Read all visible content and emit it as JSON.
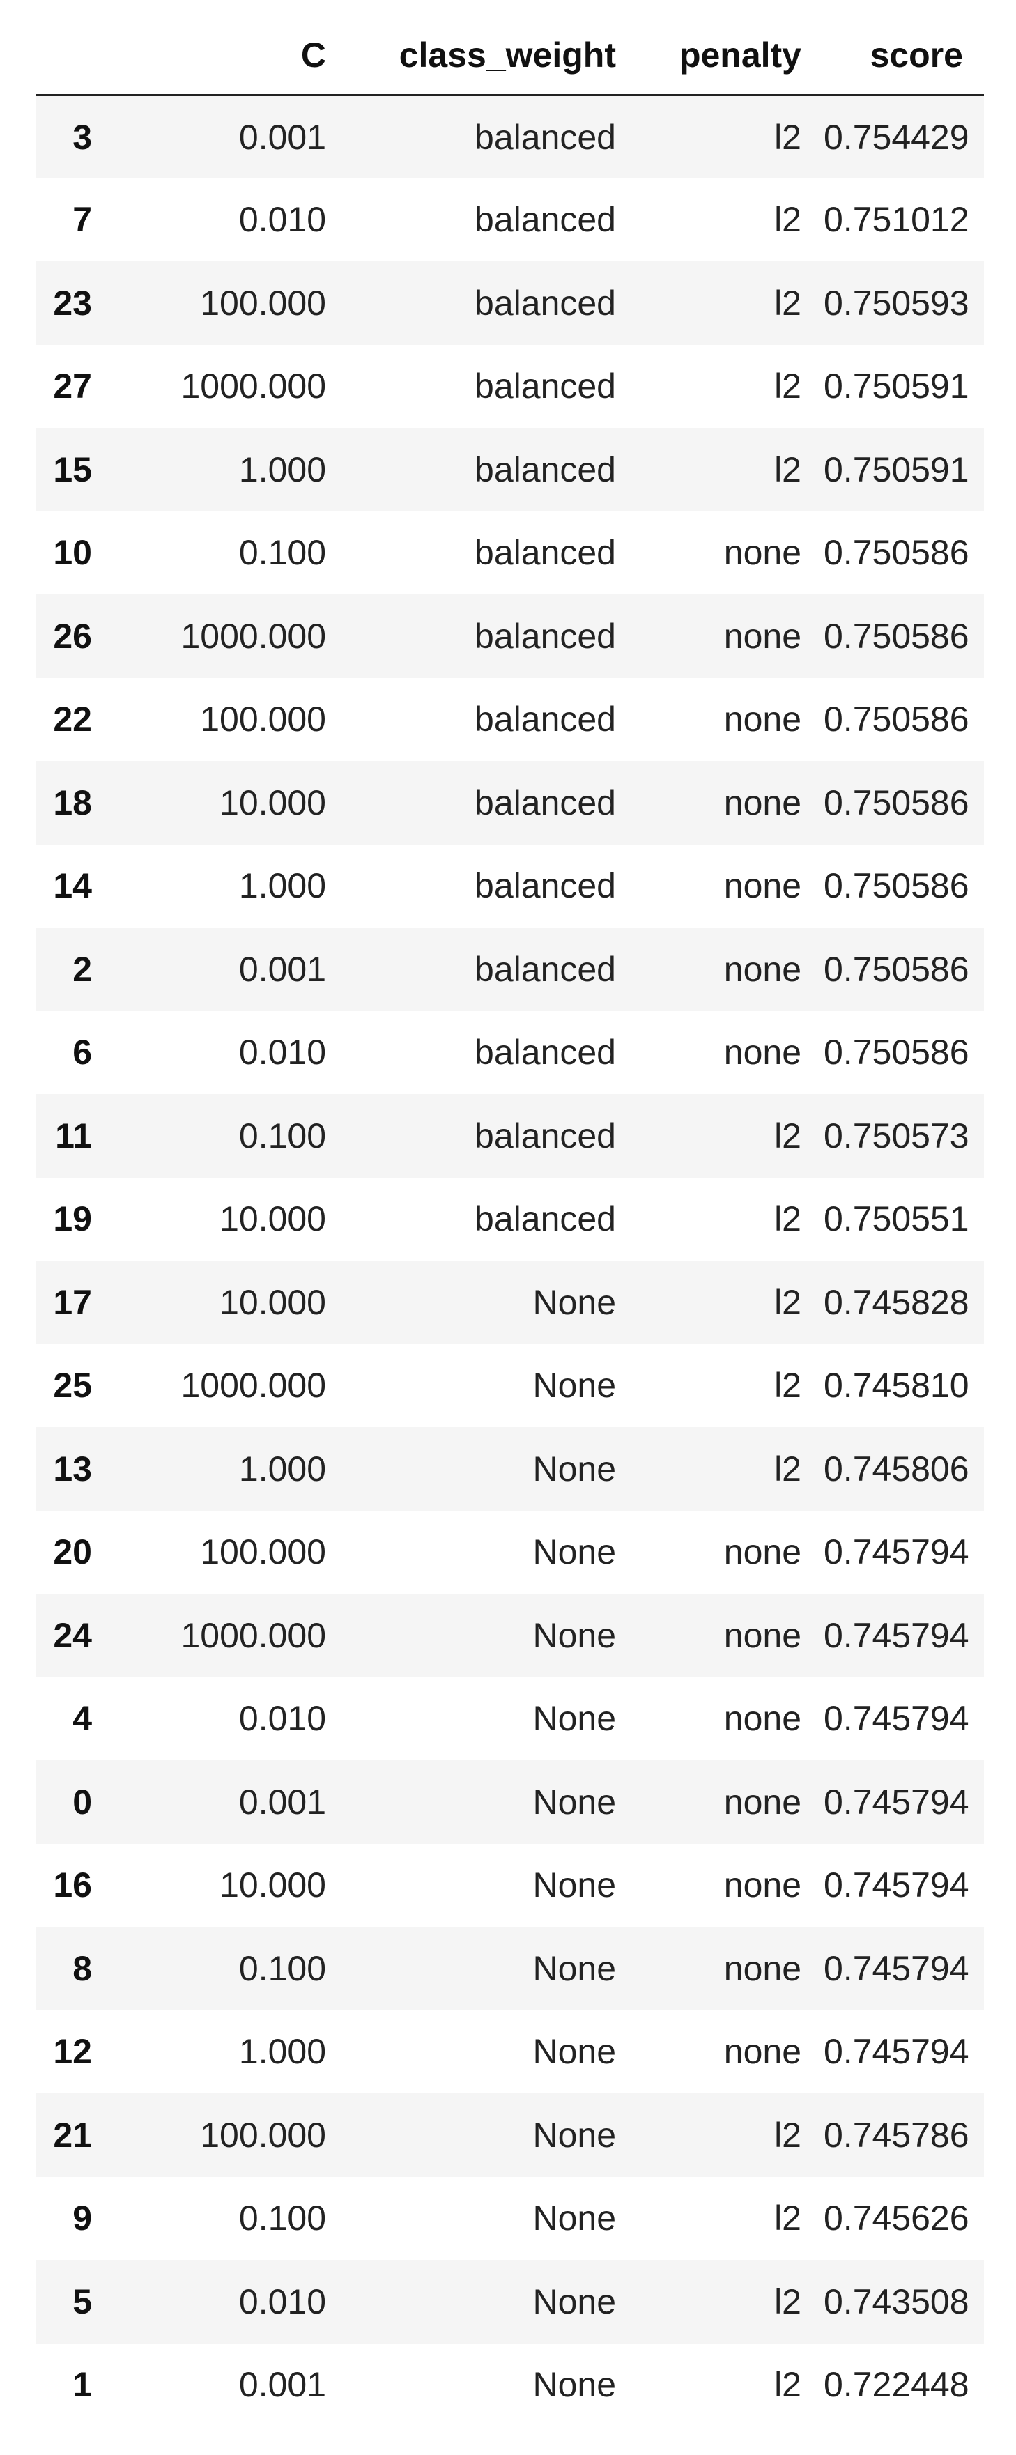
{
  "table": {
    "columns": [
      "",
      "C",
      "class_weight",
      "penalty",
      "score"
    ],
    "rows": [
      {
        "index": "3",
        "C": "0.001",
        "class_weight": "balanced",
        "penalty": "l2",
        "score": "0.754429"
      },
      {
        "index": "7",
        "C": "0.010",
        "class_weight": "balanced",
        "penalty": "l2",
        "score": "0.751012"
      },
      {
        "index": "23",
        "C": "100.000",
        "class_weight": "balanced",
        "penalty": "l2",
        "score": "0.750593"
      },
      {
        "index": "27",
        "C": "1000.000",
        "class_weight": "balanced",
        "penalty": "l2",
        "score": "0.750591"
      },
      {
        "index": "15",
        "C": "1.000",
        "class_weight": "balanced",
        "penalty": "l2",
        "score": "0.750591"
      },
      {
        "index": "10",
        "C": "0.100",
        "class_weight": "balanced",
        "penalty": "none",
        "score": "0.750586"
      },
      {
        "index": "26",
        "C": "1000.000",
        "class_weight": "balanced",
        "penalty": "none",
        "score": "0.750586"
      },
      {
        "index": "22",
        "C": "100.000",
        "class_weight": "balanced",
        "penalty": "none",
        "score": "0.750586"
      },
      {
        "index": "18",
        "C": "10.000",
        "class_weight": "balanced",
        "penalty": "none",
        "score": "0.750586"
      },
      {
        "index": "14",
        "C": "1.000",
        "class_weight": "balanced",
        "penalty": "none",
        "score": "0.750586"
      },
      {
        "index": "2",
        "C": "0.001",
        "class_weight": "balanced",
        "penalty": "none",
        "score": "0.750586"
      },
      {
        "index": "6",
        "C": "0.010",
        "class_weight": "balanced",
        "penalty": "none",
        "score": "0.750586"
      },
      {
        "index": "11",
        "C": "0.100",
        "class_weight": "balanced",
        "penalty": "l2",
        "score": "0.750573"
      },
      {
        "index": "19",
        "C": "10.000",
        "class_weight": "balanced",
        "penalty": "l2",
        "score": "0.750551"
      },
      {
        "index": "17",
        "C": "10.000",
        "class_weight": "None",
        "penalty": "l2",
        "score": "0.745828"
      },
      {
        "index": "25",
        "C": "1000.000",
        "class_weight": "None",
        "penalty": "l2",
        "score": "0.745810"
      },
      {
        "index": "13",
        "C": "1.000",
        "class_weight": "None",
        "penalty": "l2",
        "score": "0.745806"
      },
      {
        "index": "20",
        "C": "100.000",
        "class_weight": "None",
        "penalty": "none",
        "score": "0.745794"
      },
      {
        "index": "24",
        "C": "1000.000",
        "class_weight": "None",
        "penalty": "none",
        "score": "0.745794"
      },
      {
        "index": "4",
        "C": "0.010",
        "class_weight": "None",
        "penalty": "none",
        "score": "0.745794"
      },
      {
        "index": "0",
        "C": "0.001",
        "class_weight": "None",
        "penalty": "none",
        "score": "0.745794"
      },
      {
        "index": "16",
        "C": "10.000",
        "class_weight": "None",
        "penalty": "none",
        "score": "0.745794"
      },
      {
        "index": "8",
        "C": "0.100",
        "class_weight": "None",
        "penalty": "none",
        "score": "0.745794"
      },
      {
        "index": "12",
        "C": "1.000",
        "class_weight": "None",
        "penalty": "none",
        "score": "0.745794"
      },
      {
        "index": "21",
        "C": "100.000",
        "class_weight": "None",
        "penalty": "l2",
        "score": "0.745786"
      },
      {
        "index": "9",
        "C": "0.100",
        "class_weight": "None",
        "penalty": "l2",
        "score": "0.745626"
      },
      {
        "index": "5",
        "C": "0.010",
        "class_weight": "None",
        "penalty": "l2",
        "score": "0.743508"
      },
      {
        "index": "1",
        "C": "0.001",
        "class_weight": "None",
        "penalty": "l2",
        "score": "0.722448"
      }
    ]
  },
  "colors": {
    "stripe": "#f5f5f5",
    "header_rule": "#222222",
    "text": "#111111"
  }
}
